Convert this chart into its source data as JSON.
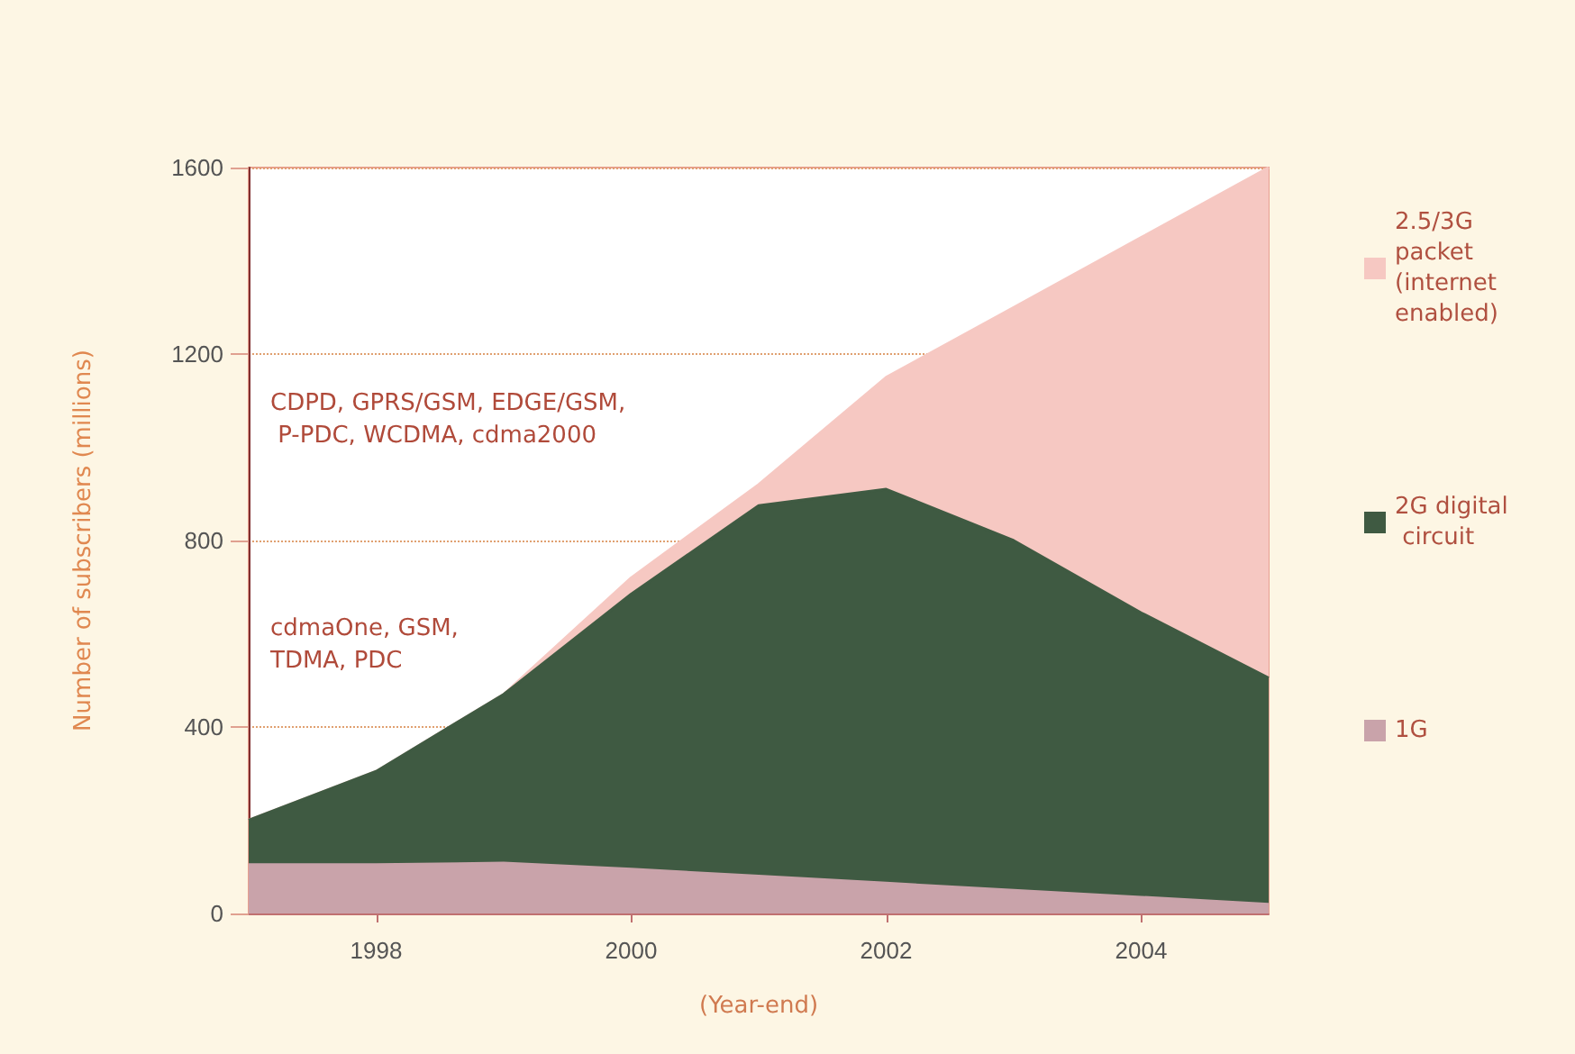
{
  "chart_data": {
    "type": "area",
    "stacked": true,
    "xlabel": "(Year-end)",
    "ylabel": "Number of subscribers (millions)",
    "x": [
      1997,
      1998,
      1999,
      2000,
      2001,
      2002,
      2003,
      2004,
      2005
    ],
    "xlim": [
      1997,
      2005
    ],
    "xticks": [
      1998,
      2000,
      2002,
      2004
    ],
    "ylim": [
      0,
      1600
    ],
    "yticks": [
      0,
      400,
      800,
      1200,
      1600
    ],
    "series": [
      {
        "name": "1G",
        "color": "#c9a3aa",
        "values": [
          105,
          105,
          108,
          95,
          80,
          65,
          50,
          35,
          20
        ]
      },
      {
        "name": "2G digital circuit",
        "color": "#3f5a42",
        "values": [
          95,
          200,
          362,
          590,
          795,
          845,
          750,
          610,
          485
        ]
      },
      {
        "name": "2.5/3G packet (internet enabled)",
        "color": "#f6c8c2",
        "values": [
          0,
          0,
          0,
          35,
          45,
          240,
          500,
          805,
          1095
        ]
      }
    ],
    "annotations": [
      "CDPD, GPRS/GSM, EDGE/GSM, P-PDC, WCDMA, cdma2000",
      "cdmaOne, GSM, TDMA, PDC"
    ],
    "grid": "y",
    "legend": "right",
    "marker": "none",
    "line_style": "solid"
  }
}
